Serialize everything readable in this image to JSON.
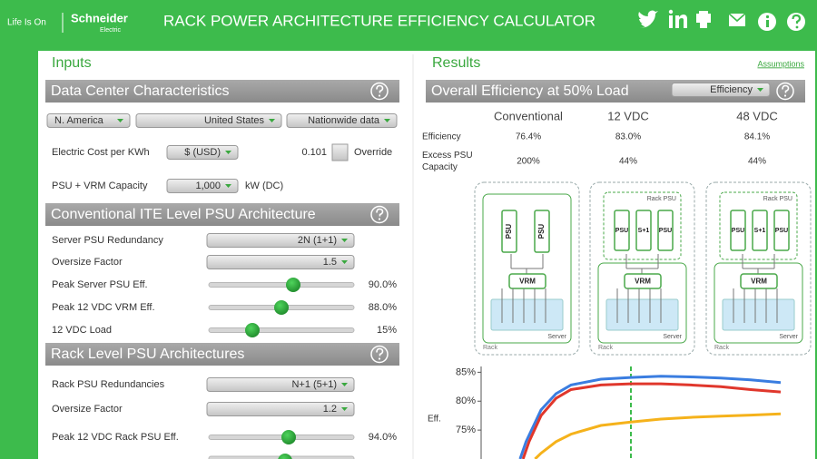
{
  "header": {
    "tagline": "Life Is On",
    "brand": "Schneider",
    "brand_sub": "Electric",
    "title": "RACK POWER ARCHITECTURE EFFICIENCY CALCULATOR"
  },
  "inputs": {
    "title": "Inputs",
    "sections": [
      {
        "title": "Data Center Characteristics",
        "region": [
          "N. America",
          "United States",
          "Nationwide data"
        ],
        "rows": [
          {
            "label": "Electric Cost per KWh",
            "dropdown": "$ (USD)",
            "value": "0.101",
            "checkbox": "Override"
          },
          {
            "label": "PSU + VRM Capacity",
            "dropdown": "1,000",
            "unit": "kW (DC)"
          }
        ]
      },
      {
        "title": "Conventional ITE Level PSU Architecture",
        "rows": [
          {
            "label": "Server PSU Redundancy",
            "dropdown": "2N (1+1)"
          },
          {
            "label": "Oversize Factor",
            "dropdown": "1.5"
          },
          {
            "label": "Peak Server PSU Eff.",
            "slider": "90.0%"
          },
          {
            "label": "Peak 12 VDC VRM Eff.",
            "slider": "88.0%"
          },
          {
            "label": "12 VDC Load",
            "slider": "15%"
          }
        ]
      },
      {
        "title": "Rack Level PSU Architectures",
        "rows": [
          {
            "label": "Rack PSU Redundancies",
            "dropdown": "N+1 (5+1)"
          },
          {
            "label": "Oversize Factor",
            "dropdown": "1.2"
          },
          {
            "label": "Peak 12 VDC Rack PSU Eff.",
            "slider": "94.0%"
          }
        ]
      }
    ]
  },
  "results": {
    "title": "Results",
    "link": "Assumptions",
    "section_title": "Overall Efficiency at 50% Load",
    "view_dropdown": "Efficiency",
    "columns": [
      "Conventional",
      "12 VDC",
      "48 VDC"
    ],
    "rows": [
      {
        "label": [
          "Efficiency"
        ],
        "values": [
          "76.4%",
          "83.0%",
          "84.1%"
        ]
      },
      {
        "label": [
          "Excess PSU",
          "Capacity"
        ],
        "values": [
          "200%",
          "44%",
          "44%"
        ]
      }
    ]
  },
  "diagrams": [
    {
      "psu": "PSU",
      "vrm": "VRM",
      "server": "Server",
      "rack": "Rack"
    },
    {
      "rack_psu": "Rack PSU",
      "psu": "PSU",
      "redundant": "S+1",
      "vrm": "VRM",
      "server": "Server",
      "rack": "Rack"
    },
    {
      "rack_psu": "Rack PSU",
      "psu": "PSU",
      "redundant": "S+1",
      "vrm": "VRM",
      "server": "Server",
      "rack": "Rack"
    }
  ],
  "efficiency_chart": {
    "type": "line",
    "y_label": "Eff.",
    "xlim": [
      0,
      100
    ],
    "ylim": [
      70,
      86
    ],
    "yticks": [
      {
        "value": 75,
        "label": "75%"
      },
      {
        "value": 80,
        "label": "80%"
      },
      {
        "value": 85,
        "label": "85%"
      }
    ],
    "highlight_x": 50,
    "series": [
      {
        "color": "#3a7de0",
        "x": [
          13,
          15,
          20,
          25,
          30,
          40,
          50,
          60,
          70,
          80,
          90,
          100
        ],
        "y": [
          70,
          73,
          78.5,
          81.3,
          82.8,
          83.8,
          84.1,
          84.3,
          84.2,
          84,
          83.7,
          83.2
        ]
      },
      {
        "color": "#e0372c",
        "x": [
          14,
          16,
          20,
          25,
          30,
          40,
          50,
          60,
          70,
          80,
          90,
          100
        ],
        "y": [
          70,
          73,
          77.5,
          80.5,
          82,
          82.8,
          83,
          83,
          82.8,
          82.5,
          82,
          81.6
        ]
      },
      {
        "color": "#f5b21b",
        "x": [
          18,
          20,
          25,
          30,
          40,
          50,
          60,
          70,
          80,
          90,
          100
        ],
        "y": [
          70,
          71,
          73,
          74.3,
          75.8,
          76.4,
          76.9,
          77.2,
          77.4,
          77.6,
          77.8
        ]
      }
    ]
  }
}
